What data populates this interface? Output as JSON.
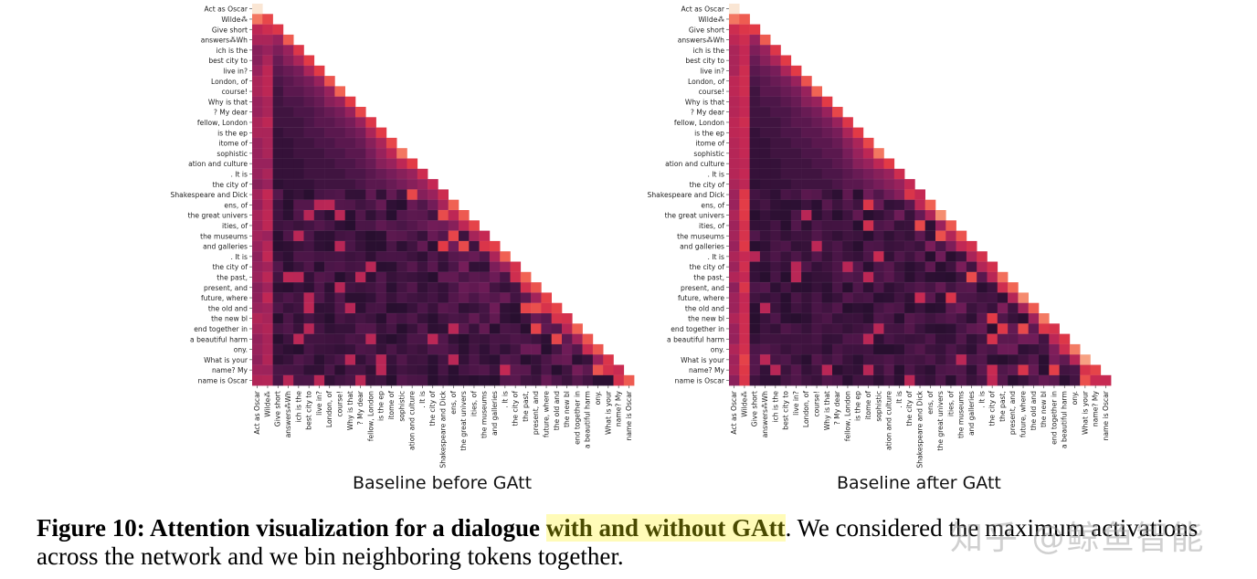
{
  "tokens": [
    "Act as Oscar",
    "Wilde⁂",
    "Give short",
    "answers⁂Wh",
    "ich is the",
    "best city to",
    "live in?",
    "London, of",
    "course!",
    "Why is that",
    "? My dear",
    "fellow, London",
    "is the ep",
    "itome of",
    "sophistic",
    "ation and culture",
    ". It is",
    "the city of",
    "Shakespeare and Dick",
    "ens, of",
    "the great univers",
    "ities, of",
    "the museums",
    "and galleries",
    ". It is",
    "the city of",
    "the past,",
    "present, and",
    "future, where",
    "the old and",
    "the new bl",
    "end together in",
    "a beautiful harm",
    "ony.",
    "What is your",
    "name? My",
    "name is Oscar"
  ],
  "chart_data": [
    {
      "type": "heatmap",
      "title": "Baseline before GAtt",
      "mask": "lower-triangular",
      "value_range": [
        0,
        1
      ],
      "x_tick_labels": "tokens",
      "y_tick_labels": "tokens",
      "attention_rows": [
        [
          1.0
        ],
        [
          0.85,
          0.75
        ],
        [
          0.6,
          0.65,
          0.7
        ],
        [
          0.55,
          0.55,
          0.5,
          0.8
        ],
        [
          0.45,
          0.5,
          0.42,
          0.5,
          0.7
        ],
        [
          0.45,
          0.55,
          0.35,
          0.45,
          0.55,
          0.72
        ],
        [
          0.5,
          0.6,
          0.3,
          0.35,
          0.4,
          0.55,
          0.72
        ],
        [
          0.55,
          0.6,
          0.25,
          0.3,
          0.35,
          0.4,
          0.5,
          0.78
        ],
        [
          0.55,
          0.6,
          0.2,
          0.3,
          0.3,
          0.35,
          0.4,
          0.5,
          0.82
        ],
        [
          0.5,
          0.55,
          0.2,
          0.25,
          0.25,
          0.3,
          0.35,
          0.45,
          0.5,
          0.72
        ],
        [
          0.5,
          0.55,
          0.2,
          0.2,
          0.25,
          0.25,
          0.3,
          0.35,
          0.4,
          0.5,
          0.75
        ],
        [
          0.55,
          0.6,
          0.2,
          0.2,
          0.2,
          0.25,
          0.3,
          0.3,
          0.35,
          0.4,
          0.5,
          0.7
        ],
        [
          0.55,
          0.55,
          0.15,
          0.2,
          0.2,
          0.25,
          0.25,
          0.3,
          0.3,
          0.35,
          0.4,
          0.55,
          0.72
        ],
        [
          0.5,
          0.55,
          0.15,
          0.15,
          0.2,
          0.2,
          0.25,
          0.25,
          0.3,
          0.3,
          0.35,
          0.45,
          0.55,
          0.75
        ],
        [
          0.5,
          0.55,
          0.15,
          0.15,
          0.2,
          0.2,
          0.2,
          0.25,
          0.25,
          0.3,
          0.3,
          0.4,
          0.5,
          0.6,
          0.85
        ],
        [
          0.5,
          0.5,
          0.15,
          0.15,
          0.15,
          0.2,
          0.2,
          0.2,
          0.25,
          0.25,
          0.3,
          0.35,
          0.45,
          0.5,
          0.6,
          0.72
        ],
        [
          0.5,
          0.55,
          0.15,
          0.15,
          0.15,
          0.2,
          0.2,
          0.2,
          0.2,
          0.25,
          0.25,
          0.3,
          0.35,
          0.4,
          0.45,
          0.5,
          0.65
        ],
        [
          0.45,
          0.5,
          0.12,
          0.15,
          0.15,
          0.15,
          0.2,
          0.2,
          0.2,
          0.2,
          0.25,
          0.3,
          0.3,
          0.35,
          0.4,
          0.45,
          0.5,
          0.62
        ]
      ]
    },
    {
      "type": "heatmap",
      "title": "Baseline after GAtt",
      "mask": "lower-triangular",
      "value_range": [
        0,
        1
      ],
      "x_tick_labels": "tokens",
      "y_tick_labels": "tokens",
      "attention_rows": [
        [
          1.0
        ],
        [
          0.85,
          0.8
        ],
        [
          0.65,
          0.7,
          0.72
        ],
        [
          0.6,
          0.65,
          0.5,
          0.8
        ],
        [
          0.55,
          0.62,
          0.42,
          0.5,
          0.7
        ],
        [
          0.55,
          0.62,
          0.35,
          0.45,
          0.55,
          0.72
        ],
        [
          0.55,
          0.65,
          0.3,
          0.35,
          0.4,
          0.55,
          0.72
        ],
        [
          0.6,
          0.65,
          0.25,
          0.3,
          0.35,
          0.4,
          0.5,
          0.78
        ],
        [
          0.6,
          0.65,
          0.2,
          0.3,
          0.3,
          0.35,
          0.4,
          0.5,
          0.82
        ],
        [
          0.58,
          0.62,
          0.2,
          0.25,
          0.25,
          0.3,
          0.35,
          0.45,
          0.5,
          0.72
        ],
        [
          0.58,
          0.62,
          0.2,
          0.2,
          0.25,
          0.25,
          0.3,
          0.35,
          0.4,
          0.5,
          0.75
        ],
        [
          0.6,
          0.65,
          0.2,
          0.2,
          0.2,
          0.25,
          0.3,
          0.3,
          0.35,
          0.4,
          0.5,
          0.7
        ],
        [
          0.6,
          0.62,
          0.15,
          0.2,
          0.2,
          0.25,
          0.25,
          0.3,
          0.3,
          0.35,
          0.4,
          0.55,
          0.72
        ],
        [
          0.58,
          0.62,
          0.15,
          0.15,
          0.2,
          0.2,
          0.25,
          0.25,
          0.3,
          0.3,
          0.35,
          0.45,
          0.55,
          0.75
        ],
        [
          0.58,
          0.62,
          0.15,
          0.15,
          0.2,
          0.2,
          0.2,
          0.25,
          0.25,
          0.3,
          0.3,
          0.4,
          0.5,
          0.6,
          0.85
        ],
        [
          0.58,
          0.6,
          0.15,
          0.15,
          0.15,
          0.2,
          0.2,
          0.2,
          0.25,
          0.25,
          0.3,
          0.35,
          0.45,
          0.5,
          0.6,
          0.72
        ],
        [
          0.58,
          0.62,
          0.15,
          0.15,
          0.15,
          0.2,
          0.2,
          0.2,
          0.2,
          0.25,
          0.25,
          0.3,
          0.35,
          0.4,
          0.45,
          0.5,
          0.65
        ],
        [
          0.55,
          0.6,
          0.12,
          0.15,
          0.15,
          0.15,
          0.2,
          0.2,
          0.2,
          0.2,
          0.25,
          0.3,
          0.3,
          0.35,
          0.4,
          0.45,
          0.5,
          0.62
        ]
      ]
    }
  ],
  "caption": {
    "label": "Figure 10:",
    "bold_text": " Attention visualization for a dialogue ",
    "highlight_text": "with and without GAtt",
    "rest_text": ". We considered the maximum activations across the network and we bin neighboring tokens together."
  },
  "watermark": "知乎 @鲸鱼智能"
}
